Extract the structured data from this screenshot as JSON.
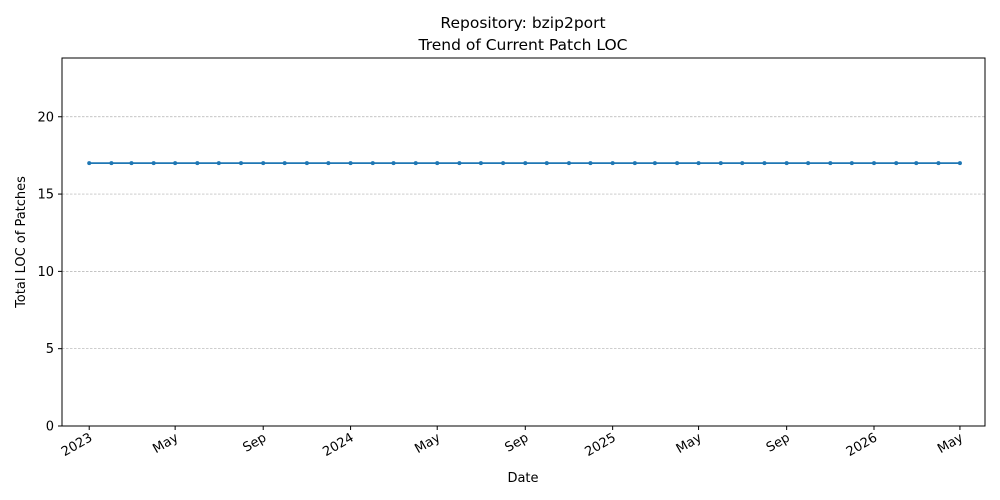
{
  "chart_data": {
    "type": "line",
    "title": "Repository: bzip2port",
    "subtitle": "Trend of Current Patch LOC",
    "xlabel": "Date",
    "ylabel": "Total LOC of Patches",
    "ylim": [
      0,
      23.8
    ],
    "xlim": [
      "2022-11-24",
      "2026-06-05"
    ],
    "yticks": [
      0,
      5,
      10,
      15,
      20
    ],
    "xticks": [
      {
        "date": "2023-01-01",
        "label": "2023"
      },
      {
        "date": "2023-05-01",
        "label": "May"
      },
      {
        "date": "2023-09-01",
        "label": "Sep"
      },
      {
        "date": "2024-01-01",
        "label": "2024"
      },
      {
        "date": "2024-05-01",
        "label": "May"
      },
      {
        "date": "2024-09-01",
        "label": "Sep"
      },
      {
        "date": "2025-01-01",
        "label": "2025"
      },
      {
        "date": "2025-05-01",
        "label": "May"
      },
      {
        "date": "2025-09-01",
        "label": "Sep"
      },
      {
        "date": "2026-01-01",
        "label": "2026"
      },
      {
        "date": "2026-05-01",
        "label": "May"
      }
    ],
    "grid": "y-dashed",
    "colors": {
      "line": "#1f77b4",
      "grid": "#b0b0b0"
    },
    "series": [
      {
        "x": [
          "2023-01-01",
          "2023-02-01",
          "2023-03-01",
          "2023-04-01",
          "2023-05-01",
          "2023-06-01",
          "2023-07-01",
          "2023-08-01",
          "2023-09-01",
          "2023-10-01",
          "2023-11-01",
          "2023-12-01",
          "2024-01-01",
          "2024-02-01",
          "2024-03-01",
          "2024-04-01",
          "2024-05-01",
          "2024-06-01",
          "2024-07-01",
          "2024-08-01",
          "2024-09-01",
          "2024-10-01",
          "2024-11-01",
          "2024-12-01",
          "2025-01-01",
          "2025-02-01",
          "2025-03-01",
          "2025-04-01",
          "2025-05-01",
          "2025-06-01",
          "2025-07-01",
          "2025-08-01",
          "2025-09-01",
          "2025-10-01",
          "2025-11-01",
          "2025-12-01",
          "2026-01-01",
          "2026-02-01",
          "2026-03-01",
          "2026-04-01",
          "2026-05-01"
        ],
        "values": [
          17,
          17,
          17,
          17,
          17,
          17,
          17,
          17,
          17,
          17,
          17,
          17,
          17,
          17,
          17,
          17,
          17,
          17,
          17,
          17,
          17,
          17,
          17,
          17,
          17,
          17,
          17,
          17,
          17,
          17,
          17,
          17,
          17,
          17,
          17,
          17,
          17,
          17,
          17,
          17,
          17
        ]
      }
    ]
  }
}
